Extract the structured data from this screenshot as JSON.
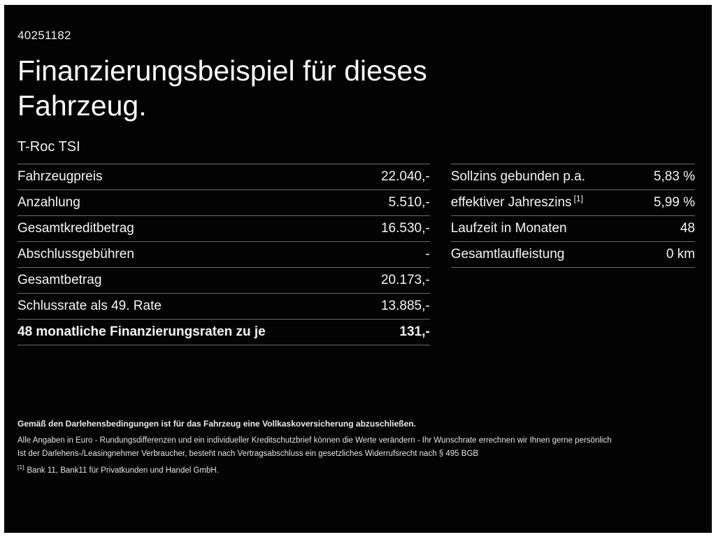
{
  "page": {
    "doc_id": "40251182",
    "title_line1": "Finanzierungsbeispiel für dieses",
    "title_line2": "Fahrzeug.",
    "vehicle_model": "T-Roc TSI"
  },
  "finance_table": {
    "rows": [
      {
        "label": "Fahrzeugpreis",
        "value": "22.040,-"
      },
      {
        "label": "Anzahlung",
        "value": "5.510,-"
      },
      {
        "label": "Gesamtkreditbetrag",
        "value": "16.530,-"
      },
      {
        "label": "Abschlussgebühren",
        "value": "-"
      },
      {
        "label": "Gesamtbetrag",
        "value": "20.173,-"
      },
      {
        "label": "Schlussrate als 49. Rate",
        "value": "13.885,-"
      },
      {
        "label": "48 monatliche Finanzierungsraten zu je",
        "value": "131,-"
      }
    ]
  },
  "conditions_table": {
    "rows": [
      {
        "label": "Sollzins gebunden p.a.",
        "sup": "",
        "value": "5,83 %"
      },
      {
        "label": "effektiver Jahreszins",
        "sup": "[1]",
        "value": "5,99 %"
      },
      {
        "label": "Laufzeit in Monaten",
        "sup": "",
        "value": "48"
      },
      {
        "label": "Gesamtlaufleistung",
        "sup": "",
        "value": "0 km"
      }
    ]
  },
  "footer": {
    "insurance_note": "Gemäß den Darlehensbedingungen ist für das Fahrzeug eine Vollkaskoversicherung abzuschließen.",
    "disclaimer_line1": "Alle Angaben in Euro - Rundungsdifferenzen und ein individueller Kreditschutzbrief können die Werte verändern - Ihr Wunschrate errechnen wir Ihnen gerne persönlich",
    "disclaimer_line2": "Ist der Darlehens-/Leasingnehmer Verbraucher, besteht nach Vertragsabschluss ein gesetzliches Widerrufsrecht nach § 495 BGB",
    "footnote_marker": "[1]",
    "footnote_text": "Bank 11, Bank11 für Privatkunden und Handel GmbH."
  },
  "colors": {
    "background": "#030303",
    "text": "#f5f5f5",
    "divider": "#6a6a6a"
  }
}
